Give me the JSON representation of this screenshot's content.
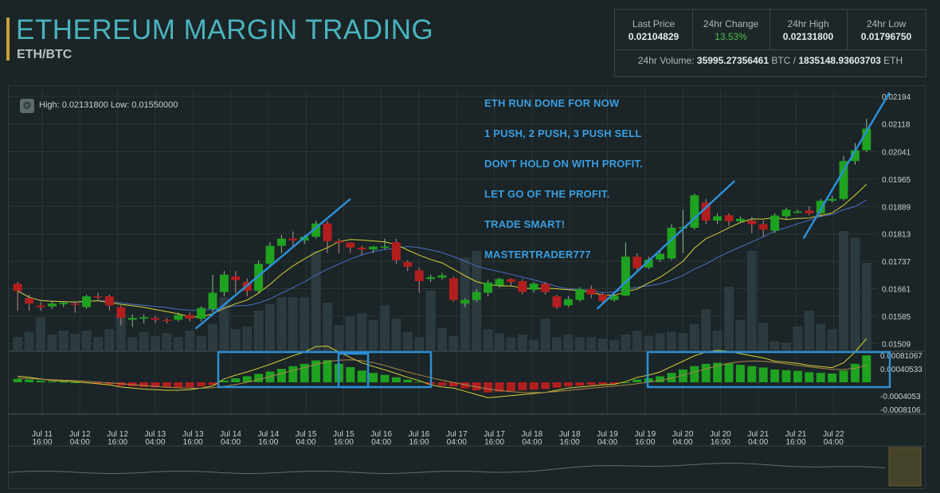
{
  "header": {
    "title": "ETHEREUM MARGIN TRADING",
    "pair": "ETH/BTC"
  },
  "stats": {
    "last_price_label": "Last Price",
    "last_price": "0.02104829",
    "change_label": "24hr Change",
    "change": "13.53%",
    "high_label": "24hr High",
    "high": "0.02131800",
    "low_label": "24hr Low",
    "low": "0.01796750",
    "volume_label": "24hr Volume:",
    "volume_btc": "35995.27356461",
    "volume_btc_unit": "BTC /",
    "volume_eth": "1835148.93603703",
    "volume_eth_unit": "ETH"
  },
  "chart_info": {
    "high_low": "High: 0.02131800   Low: 0.01550000"
  },
  "annotations": [
    "ETH RUN DONE FOR NOW",
    "1 PUSH, 2 PUSH, 3 PUSH SELL",
    "DON'T HOLD ON WITH PROFIT.",
    "LET GO OF THE PROFIT.",
    "TRADE SMART!",
    "MASTERTRADER777"
  ],
  "colors": {
    "up": "#1fa21f",
    "down": "#b21e1e",
    "ma_fast": "#d6d23a",
    "ma_slow": "#4d6fc8",
    "volume": "#2c3b3f",
    "drawing": "#2d8fd6",
    "grid": "#2b3638"
  },
  "chart_data": {
    "type": "candlestick",
    "y_ticks": [
      0.02194,
      0.02118,
      0.02041,
      0.01965,
      0.01889,
      0.01813,
      0.01737,
      0.01661,
      0.01585,
      0.01509
    ],
    "ylim": [
      0.0149,
      0.02212
    ],
    "macd_ticks": [
      "0.00081067",
      "0.00040533",
      "-0.0004053",
      "-0.0008106"
    ],
    "x_ticks": [
      [
        "Jul 11",
        "16:00"
      ],
      [
        "Jul 12",
        "04:00"
      ],
      [
        "Jul 12",
        "16:00"
      ],
      [
        "Jul 13",
        "04:00"
      ],
      [
        "Jul 13",
        "16:00"
      ],
      [
        "Jul 14",
        "04:00"
      ],
      [
        "Jul 14",
        "16:00"
      ],
      [
        "Jul 15",
        "04:00"
      ],
      [
        "Jul 15",
        "16:00"
      ],
      [
        "Jul 16",
        "04:00"
      ],
      [
        "Jul 16",
        "16:00"
      ],
      [
        "Jul 17",
        "04:00"
      ],
      [
        "Jul 17",
        "16:00"
      ],
      [
        "Jul 18",
        "04:00"
      ],
      [
        "Jul 18",
        "16:00"
      ],
      [
        "Jul 19",
        "04:00"
      ],
      [
        "Jul 19",
        "16:00"
      ],
      [
        "Jul 20",
        "04:00"
      ],
      [
        "Jul 20",
        "16:00"
      ],
      [
        "Jul 21",
        "04:00"
      ],
      [
        "Jul 21",
        "16:00"
      ],
      [
        "Jul 22",
        "04:00"
      ]
    ],
    "candles": [
      [
        0.01675,
        0.01655,
        0.0168,
        0.016
      ],
      [
        0.01635,
        0.0162,
        0.01645,
        0.016
      ],
      [
        0.01615,
        0.0161,
        0.01625,
        0.016
      ],
      [
        0.01612,
        0.0162,
        0.01625,
        0.01605
      ],
      [
        0.01618,
        0.01622,
        0.01625,
        0.0161
      ],
      [
        0.0162,
        0.01618,
        0.01625,
        0.01595
      ],
      [
        0.0161,
        0.0164,
        0.01645,
        0.01605
      ],
      [
        0.0164,
        0.01638,
        0.0165,
        0.0163
      ],
      [
        0.0164,
        0.01615,
        0.01645,
        0.016
      ],
      [
        0.0161,
        0.0158,
        0.01615,
        0.0156
      ],
      [
        0.01575,
        0.0158,
        0.0159,
        0.01555
      ],
      [
        0.01578,
        0.01582,
        0.0159,
        0.01565
      ],
      [
        0.0158,
        0.01575,
        0.01585,
        0.01565
      ],
      [
        0.01575,
        0.01572,
        0.0158,
        0.01565
      ],
      [
        0.01575,
        0.01588,
        0.01595,
        0.0157
      ],
      [
        0.01588,
        0.01578,
        0.01595,
        0.0157
      ],
      [
        0.01578,
        0.01608,
        0.01612,
        0.0157
      ],
      [
        0.01605,
        0.0165,
        0.017,
        0.01595
      ],
      [
        0.01652,
        0.017,
        0.0171,
        0.0164
      ],
      [
        0.01695,
        0.01685,
        0.0171,
        0.0165
      ],
      [
        0.0168,
        0.01655,
        0.0169,
        0.0164
      ],
      [
        0.01655,
        0.0173,
        0.0174,
        0.0165
      ],
      [
        0.0173,
        0.0178,
        0.0179,
        0.0172
      ],
      [
        0.0178,
        0.018,
        0.0181,
        0.0176
      ],
      [
        0.018,
        0.01795,
        0.0182,
        0.01775
      ],
      [
        0.01795,
        0.01805,
        0.0181,
        0.01785
      ],
      [
        0.01805,
        0.01842,
        0.0185,
        0.018
      ],
      [
        0.01842,
        0.01793,
        0.0185,
        0.0176
      ],
      [
        0.01793,
        0.01789,
        0.018,
        0.0176
      ],
      [
        0.01789,
        0.01775,
        0.0179,
        0.0176
      ],
      [
        0.01775,
        0.0177,
        0.0178,
        0.01755
      ],
      [
        0.0177,
        0.01778,
        0.0178,
        0.0176
      ],
      [
        0.01778,
        0.01778,
        0.018,
        0.0177
      ],
      [
        0.0179,
        0.0174,
        0.018,
        0.0173
      ],
      [
        0.01735,
        0.01722,
        0.0174,
        0.0171
      ],
      [
        0.01712,
        0.01682,
        0.0172,
        0.0165
      ],
      [
        0.01688,
        0.01693,
        0.017,
        0.0168
      ],
      [
        0.01692,
        0.01698,
        0.01705,
        0.01685
      ],
      [
        0.0169,
        0.0163,
        0.01695,
        0.01625
      ],
      [
        0.0162,
        0.0163,
        0.01635,
        0.0161
      ],
      [
        0.0163,
        0.01652,
        0.0166,
        0.01625
      ],
      [
        0.0165,
        0.01678,
        0.01685,
        0.0164
      ],
      [
        0.0167,
        0.01688,
        0.01692,
        0.01665
      ],
      [
        0.01688,
        0.0168,
        0.0169,
        0.0167
      ],
      [
        0.01682,
        0.01652,
        0.01688,
        0.01645
      ],
      [
        0.01658,
        0.01675,
        0.0168,
        0.0165
      ],
      [
        0.01675,
        0.01652,
        0.0168,
        0.01645
      ],
      [
        0.0164,
        0.0161,
        0.01645,
        0.01605
      ],
      [
        0.01615,
        0.01632,
        0.0164,
        0.0161
      ],
      [
        0.0163,
        0.0166,
        0.01665,
        0.01625
      ],
      [
        0.0166,
        0.01645,
        0.0167,
        0.01635
      ],
      [
        0.01645,
        0.01627,
        0.0165,
        0.0162
      ],
      [
        0.0163,
        0.01642,
        0.0165,
        0.01625
      ],
      [
        0.01642,
        0.0175,
        0.0179,
        0.0164
      ],
      [
        0.0175,
        0.01718,
        0.0176,
        0.0171
      ],
      [
        0.0172,
        0.01742,
        0.0175,
        0.01715
      ],
      [
        0.01742,
        0.01758,
        0.0177,
        0.01735
      ],
      [
        0.01745,
        0.0183,
        0.0184,
        0.0174
      ],
      [
        0.0183,
        0.01832,
        0.0188,
        0.0176
      ],
      [
        0.0183,
        0.0192,
        0.01925,
        0.01825
      ],
      [
        0.019,
        0.0185,
        0.0191,
        0.0184
      ],
      [
        0.0185,
        0.01862,
        0.0187,
        0.0184
      ],
      [
        0.01865,
        0.01848,
        0.0187,
        0.01835
      ],
      [
        0.01848,
        0.01855,
        0.01862,
        0.01843
      ],
      [
        0.0185,
        0.0184,
        0.0186,
        0.01815
      ],
      [
        0.0184,
        0.01825,
        0.0185,
        0.01805
      ],
      [
        0.01822,
        0.01864,
        0.0187,
        0.01815
      ],
      [
        0.01862,
        0.0188,
        0.01885,
        0.01855
      ],
      [
        0.01875,
        0.01875,
        0.0188,
        0.0187
      ],
      [
        0.01878,
        0.0187,
        0.0189,
        0.01865
      ],
      [
        0.0187,
        0.01905,
        0.0191,
        0.0186
      ],
      [
        0.01905,
        0.0191,
        0.0192,
        0.019
      ],
      [
        0.0191,
        0.02015,
        0.0203,
        0.01905
      ],
      [
        0.02015,
        0.02045,
        0.02065,
        0.02005
      ],
      [
        0.02045,
        0.02105,
        0.02132,
        0.0204
      ]
    ],
    "volumes": [
      20,
      28,
      50,
      24,
      30,
      25,
      30,
      20,
      32,
      55,
      20,
      28,
      22,
      26,
      20,
      30,
      22,
      40,
      80,
      32,
      36,
      60,
      70,
      80,
      80,
      80,
      150,
      72,
      38,
      52,
      56,
      46,
      68,
      48,
      28,
      20,
      90,
      34,
      22,
      140,
      150,
      32,
      26,
      20,
      24,
      16,
      48,
      20,
      24,
      20,
      20,
      18,
      16,
      24,
      30,
      22,
      26,
      28,
      26,
      40,
      62,
      30,
      96,
      46,
      150,
      42,
      14,
      12,
      36,
      60,
      40,
      32,
      180,
      170,
      132
    ],
    "macd": [
      0.0001,
      8e-05,
      5e-05,
      2e-05,
      1e-05,
      0.0,
      -2e-05,
      -4e-05,
      -6e-05,
      -0.0001,
      -0.00012,
      -0.00014,
      -0.00015,
      -0.00016,
      -0.00016,
      -0.00015,
      -0.00012,
      -8e-05,
      5e-05,
      0.00012,
      0.00018,
      0.00025,
      0.00032,
      0.0004,
      0.00048,
      0.00055,
      0.00065,
      0.00066,
      0.00055,
      0.00045,
      0.00035,
      0.00028,
      0.00022,
      0.00015,
      8e-05,
      2e-05,
      -6e-05,
      -0.0001,
      -0.00012,
      -0.00018,
      -0.00024,
      -0.0003,
      -0.00028,
      -0.00026,
      -0.00024,
      -0.00022,
      -0.0002,
      -0.00016,
      -0.00012,
      -0.0001,
      -8e-05,
      -6e-05,
      -5e-05,
      0.0,
      8e-05,
      0.00012,
      0.00018,
      0.00028,
      0.00038,
      0.00048,
      0.00055,
      0.00058,
      0.00056,
      0.00052,
      0.00048,
      0.00044,
      0.00038,
      0.00036,
      0.00034,
      0.0003,
      0.00028,
      0.00026,
      0.00035,
      0.00055,
      0.0008
    ]
  }
}
